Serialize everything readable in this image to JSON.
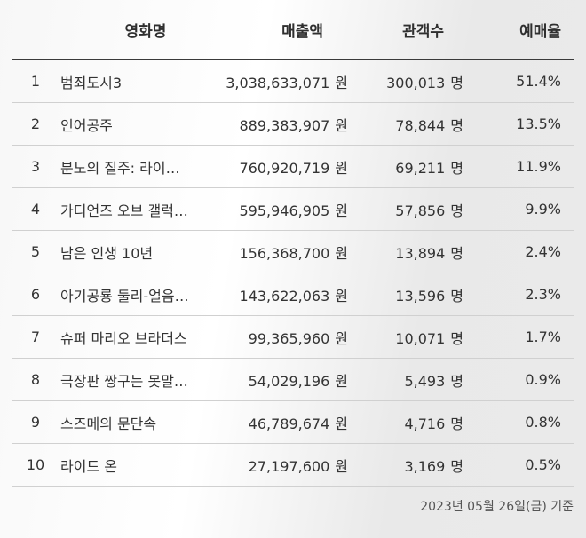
{
  "table": {
    "headers": {
      "title": "영화명",
      "sales": "매출액",
      "audience": "관객수",
      "rate": "예매율"
    },
    "units": {
      "currency": "원",
      "people": "명"
    },
    "rows": [
      {
        "rank": "1",
        "title": "범죄도시3",
        "sales": "3,038,633,071",
        "audience": "300,013",
        "rate": "51.4%"
      },
      {
        "rank": "2",
        "title": "인어공주",
        "sales": "889,383,907",
        "audience": "78,844",
        "rate": "13.5%"
      },
      {
        "rank": "3",
        "title": "분노의 질주: 라이…",
        "sales": "760,920,719",
        "audience": "69,211",
        "rate": "11.9%"
      },
      {
        "rank": "4",
        "title": "가디언즈 오브 갤럭…",
        "sales": "595,946,905",
        "audience": "57,856",
        "rate": "9.9%"
      },
      {
        "rank": "5",
        "title": "남은 인생 10년",
        "sales": "156,368,700",
        "audience": "13,894",
        "rate": "2.4%"
      },
      {
        "rank": "6",
        "title": "아기공룡 둘리-얼음…",
        "sales": "143,622,063",
        "audience": "13,596",
        "rate": "2.3%"
      },
      {
        "rank": "7",
        "title": "슈퍼 마리오 브라더스",
        "sales": "99,365,960",
        "audience": "10,071",
        "rate": "1.7%"
      },
      {
        "rank": "8",
        "title": "극장판 짱구는 못말…",
        "sales": "54,029,196",
        "audience": "5,493",
        "rate": "0.9%"
      },
      {
        "rank": "9",
        "title": "스즈메의 문단속",
        "sales": "46,789,674",
        "audience": "4,716",
        "rate": "0.8%"
      },
      {
        "rank": "10",
        "title": "라이드 온",
        "sales": "27,197,600",
        "audience": "3,169",
        "rate": "0.5%"
      }
    ]
  },
  "footer": {
    "date_note": "2023년 05월 26일(금) 기준"
  }
}
